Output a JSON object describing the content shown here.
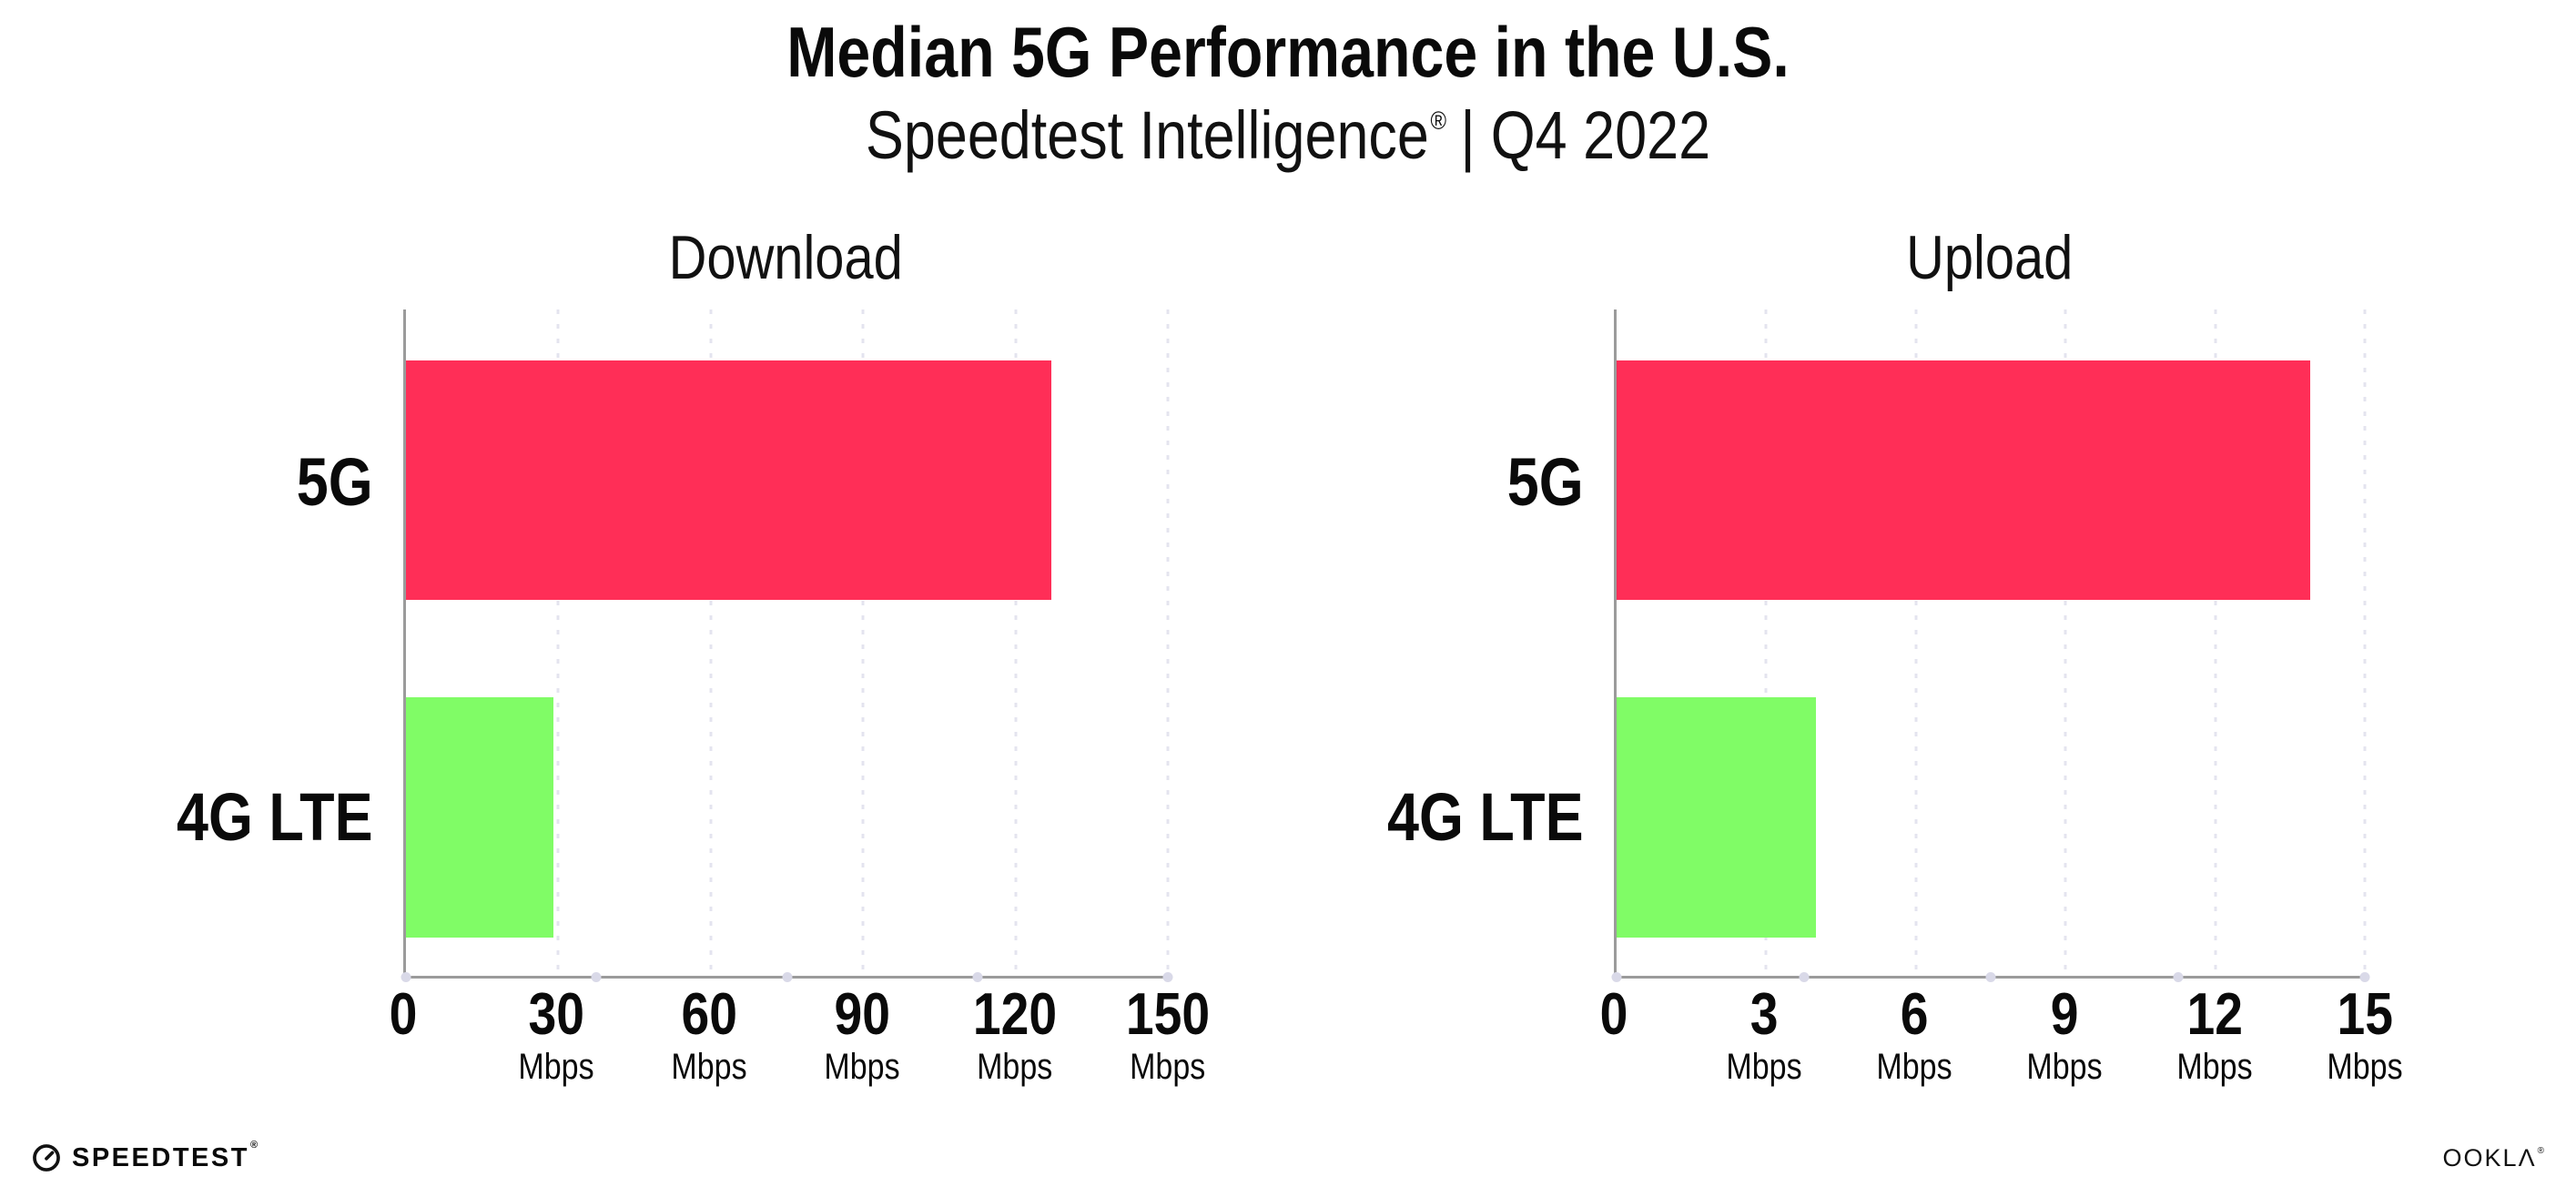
{
  "header": {
    "title": "Median 5G Performance in the U.S.",
    "subtitle_brand": "Speedtest Intelligence",
    "subtitle_reg": "®",
    "subtitle_divider": "|",
    "subtitle_period": "Q4 2022"
  },
  "chart_data": [
    {
      "type": "bar",
      "orientation": "horizontal",
      "title": "Download",
      "categories": [
        "5G",
        "4G LTE"
      ],
      "values": [
        127,
        29
      ],
      "unit": "Mbps",
      "xlim": [
        0,
        150
      ],
      "xticks": [
        0,
        30,
        60,
        90,
        120,
        150
      ],
      "tick_labels": [
        {
          "value": "0",
          "unit": ""
        },
        {
          "value": "30",
          "unit": "Mbps"
        },
        {
          "value": "60",
          "unit": "Mbps"
        },
        {
          "value": "90",
          "unit": "Mbps"
        },
        {
          "value": "120",
          "unit": "Mbps"
        },
        {
          "value": "150",
          "unit": "Mbps"
        }
      ],
      "colors": [
        "#ff2e57",
        "#80fc66"
      ],
      "grid": "dotted-vertical",
      "legend": "none"
    },
    {
      "type": "bar",
      "orientation": "horizontal",
      "title": "Upload",
      "categories": [
        "5G",
        "4G LTE"
      ],
      "values": [
        13.9,
        4
      ],
      "unit": "Mbps",
      "xlim": [
        0,
        15
      ],
      "xticks": [
        0,
        3,
        6,
        9,
        12,
        15
      ],
      "tick_labels": [
        {
          "value": "0",
          "unit": ""
        },
        {
          "value": "3",
          "unit": "Mbps"
        },
        {
          "value": "6",
          "unit": "Mbps"
        },
        {
          "value": "9",
          "unit": "Mbps"
        },
        {
          "value": "12",
          "unit": "Mbps"
        },
        {
          "value": "15",
          "unit": "Mbps"
        }
      ],
      "colors": [
        "#ff2e57",
        "#80fc66"
      ],
      "grid": "dotted-vertical",
      "legend": "none"
    }
  ],
  "footer": {
    "speedtest_word": "SPEEDTEST",
    "speedtest_mark": "®",
    "ookla_word": "OOKLΛ",
    "ookla_mark": "®"
  },
  "colors": {
    "bar_5g": "#ff2e57",
    "bar_4g_lte": "#80fc66",
    "axis_line": "#9b9b9b",
    "grid_dots": "#e4e4ef",
    "text": "#0a0a0a"
  }
}
